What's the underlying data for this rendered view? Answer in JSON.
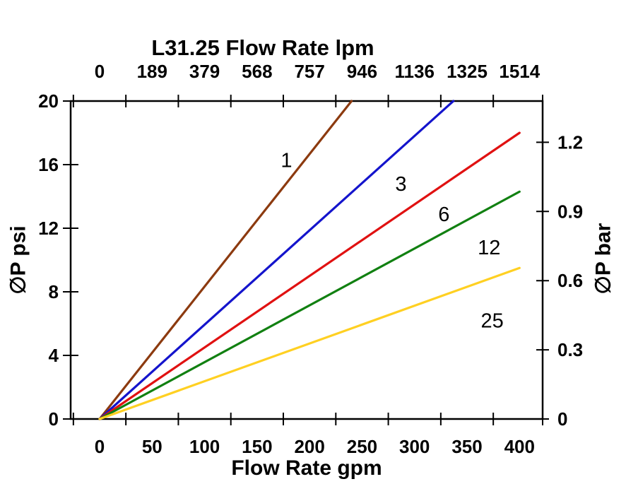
{
  "chart_data": {
    "type": "line",
    "title": "L31.25 Flow Rate lpm",
    "background": "#ffffff",
    "frame_color": "#000000",
    "grid": false,
    "axes": {
      "top": {
        "label": "L31.25 Flow Rate lpm",
        "unit": "lpm",
        "ticks": [
          0,
          189,
          379,
          568,
          757,
          946,
          1136,
          1325,
          1514
        ]
      },
      "bottom": {
        "label": "Flow Rate gpm",
        "unit": "gpm",
        "ticks": [
          0,
          50,
          100,
          150,
          200,
          250,
          300,
          350,
          400
        ],
        "range": [
          0,
          400
        ]
      },
      "left": {
        "label": "∅P psi",
        "unit": "psi",
        "ticks": [
          0,
          4,
          8,
          12,
          16,
          20
        ],
        "range": [
          0,
          20
        ]
      },
      "right": {
        "label": "∅P bar",
        "unit": "bar",
        "ticks": [
          0,
          0.3,
          0.6,
          0.9,
          1.2
        ],
        "psi_per_bar": 14.504
      }
    },
    "series": [
      {
        "label": "1",
        "color": "#8c3a0f",
        "points_gpm_psi": [
          [
            0,
            0
          ],
          [
            240,
            20
          ]
        ],
        "label_at_gpm_psi": [
          178,
          16.3
        ]
      },
      {
        "label": "3",
        "color": "#1414cc",
        "points_gpm_psi": [
          [
            0,
            0
          ],
          [
            337,
            20
          ]
        ],
        "label_at_gpm_psi": [
          287,
          14.8
        ]
      },
      {
        "label": "6",
        "color": "#e01111",
        "points_gpm_psi": [
          [
            0,
            0
          ],
          [
            400,
            18
          ]
        ],
        "label_at_gpm_psi": [
          328,
          12.9
        ]
      },
      {
        "label": "12",
        "color": "#118011",
        "points_gpm_psi": [
          [
            0,
            0
          ],
          [
            400,
            14.3
          ]
        ],
        "label_at_gpm_psi": [
          371,
          10.8
        ]
      },
      {
        "label": "25",
        "color": "#ffd022",
        "points_gpm_psi": [
          [
            0,
            0
          ],
          [
            400,
            9.5
          ]
        ],
        "label_at_gpm_psi": [
          374,
          6.2
        ]
      }
    ]
  }
}
